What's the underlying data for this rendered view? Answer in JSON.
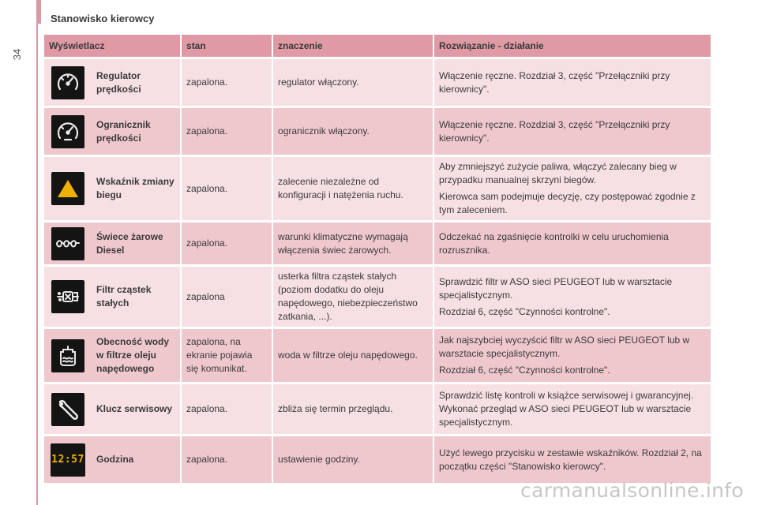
{
  "page": {
    "number": "34",
    "section_title": "Stanowisko kierowcy"
  },
  "table": {
    "headers": [
      "Wyświetlacz",
      "stan",
      "znaczenie",
      "Rozwiązanie - działanie"
    ],
    "rows": [
      {
        "icon": "speedometer-icon",
        "name": "Regulator prędkości",
        "state": "zapalona.",
        "meaning": "regulator włączony.",
        "solution": [
          "Włączenie ręczne. Rozdział 3, część \"Przełączniki przy kierownicy\"."
        ]
      },
      {
        "icon": "speed-limiter-icon",
        "name": "Ogranicznik prędkości",
        "state": "zapalona.",
        "meaning": "ogranicznik włączony.",
        "solution": [
          "Włączenie ręczne. Rozdział 3, część \"Przełączniki przy kierownicy\"."
        ]
      },
      {
        "icon": "gear-shift-triangle-icon",
        "name": "Wskaźnik zmiany biegu",
        "state": "zapalona.",
        "meaning": "zalecenie niezależne od konfiguracji i natężenia ruchu.",
        "solution": [
          "Aby zmniejszyć zużycie paliwa, włączyć zalecany bieg w przypadku manualnej skrzyni biegów.",
          "Kierowca sam podejmuje decyzję, czy postępować zgodnie z tym zaleceniem."
        ]
      },
      {
        "icon": "glow-plug-icon",
        "name": "Świece żarowe Diesel",
        "state": "zapalona.",
        "meaning": "warunki klimatyczne wymagają włączenia świec żarowych.",
        "solution": [
          "Odczekać na zgaśnięcie kontrolki w celu uruchomienia rozrusznika."
        ]
      },
      {
        "icon": "particle-filter-icon",
        "name": "Filtr cząstek stałych",
        "state": "zapalona",
        "meaning": "usterka filtra cząstek stałych (poziom dodatku do oleju napędowego, niebezpieczeństwo zatkania, ...).",
        "solution": [
          "Sprawdzić filtr w ASO sieci PEUGEOT lub w warsztacie specjalistycznym.",
          "Rozdział 6, część \"Czynności kontrolne\"."
        ]
      },
      {
        "icon": "water-in-diesel-icon",
        "name": "Obecność wody w filtrze oleju napędowego",
        "state": "zapalona, na ekranie pojawia się komunikat.",
        "meaning": "woda w filtrze oleju napędowego.",
        "solution": [
          "Jak najszybciej wyczyścić filtr w ASO sieci PEUGEOT lub w warsztacie specjalistycznym.",
          "Rozdział 6, część \"Czynności kontrolne\"."
        ]
      },
      {
        "icon": "wrench-icon",
        "name": "Klucz serwisowy",
        "state": "zapalona.",
        "meaning": "zbliża się termin przeglądu.",
        "solution": [
          "Sprawdzić listę kontroli w książce serwisowej i gwarancyjnej. Wykonać przegląd w ASO sieci PEUGEOT lub w warsztacie specjalistycznym."
        ]
      },
      {
        "icon": "clock-display-icon",
        "icon_text": "12:57",
        "name": "Godzina",
        "state": "zapalona.",
        "meaning": "ustawienie godziny.",
        "solution": [
          "Użyć lewego przycisku w zestawie wskaźników. Rozdział 2, na początku części \"Stanowisko kierowcy\"."
        ]
      }
    ]
  },
  "watermark": "carmanualsonline.info",
  "colors": {
    "header": "#e09aa5",
    "row_light": "#f7e0e3",
    "row_dark": "#efc8ce",
    "icon_bg": "#141414",
    "icon_fg": "#e8e8e8",
    "warning": "#f0b000"
  }
}
